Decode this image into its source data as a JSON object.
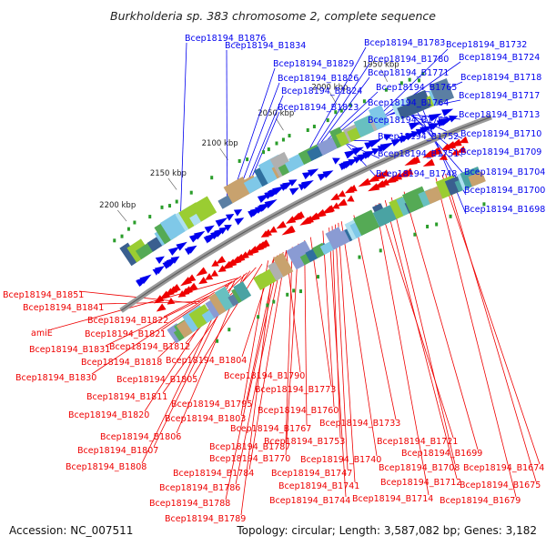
{
  "title": "Burkholderia sp. 383 chromosome 2, complete sequence",
  "accession": "Accession: NC_007511",
  "topology": "Topology: circular; Length: 3,587,082 bp; Genes: 3,182",
  "colors": {
    "forward": "#0000ee",
    "reverse": "#ee0000",
    "backbone": "#808080",
    "rna": "#2a9d2a"
  },
  "kbp_ticks": [
    "2200 kbp",
    "2150 kbp",
    "2100 kbp",
    "2050 kbp",
    "2000 kbp",
    "1950 kbp"
  ],
  "forward_labels": [
    "Bcep18194_B1876",
    "Bcep18194_B1834",
    "Bcep18194_B1829",
    "Bcep18194_B1826",
    "Bcep18194_B1824",
    "Bcep18194_B1823",
    "Bcep18194_B1783",
    "Bcep18194_B1780",
    "Bcep18194_B1771",
    "Bcep18194_B1765",
    "Bcep18194_B1764",
    "Bcep18194_B1763",
    "Bcep18194_B1752",
    "Bcep18194_B1751",
    "Bcep18194_B1748",
    "Bcep18194_B1732",
    "Bcep18194_B1724",
    "Bcep18194_B1718",
    "Bcep18194_B1717",
    "Bcep18194_B1713",
    "Bcep18194_B1710",
    "Bcep18194_B1709",
    "Bcep18194_B1704",
    "Bcep18194_B1700",
    "Bcep18194_B1698"
  ],
  "reverse_labels": [
    "Bcep18194_B1851",
    "Bcep18194_B1841",
    "Bcep18194_B1822",
    "amiE",
    "Bcep18194_B1821",
    "Bcep18194_B1831",
    "Bcep18194_B1812",
    "Bcep18194_B1818",
    "Bcep18194_B1804",
    "Bcep18194_B1830",
    "Bcep18194_B1805",
    "Bcep18194_B1790",
    "Bcep18194_B1811",
    "Bcep18194_B1773",
    "Bcep18194_B1795",
    "Bcep18194_B1820",
    "Bcep18194_B1803",
    "Bcep18194_B1760",
    "Bcep18194_B1733",
    "Bcep18194_B1767",
    "Bcep18194_B1806",
    "Bcep18194_B1753",
    "Bcep18194_B1721",
    "Bcep18194_B1787",
    "Bcep18194_B1807",
    "Bcep18194_B1770",
    "Bcep18194_B1740",
    "Bcep18194_B1699",
    "Bcep18194_B1808",
    "Bcep18194_B1784",
    "Bcep18194_B1747",
    "Bcep18194_B1708",
    "Bcep18194_B1674",
    "Bcep18194_B1786",
    "Bcep18194_B1741",
    "Bcep18194_B1712",
    "Bcep18194_B1675",
    "Bcep18194_B1788",
    "Bcep18194_B1744",
    "Bcep18194_B1714",
    "Bcep18194_B1679",
    "Bcep18194_B1789"
  ]
}
